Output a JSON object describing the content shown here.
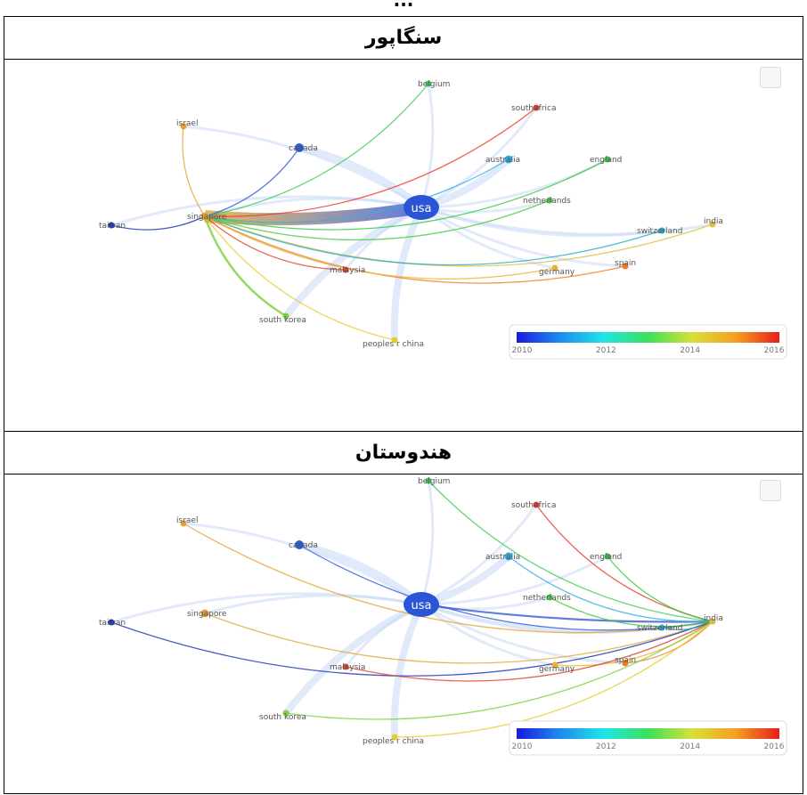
{
  "caption_cut": "...",
  "panels": [
    {
      "title": "سنگاپور",
      "focus": "singapore",
      "nodes": [
        {
          "id": "usa",
          "label": "usa",
          "color": "#2a55d6"
        },
        {
          "id": "singapore",
          "label": "singapore",
          "color": "#e0a83a"
        },
        {
          "id": "taiwan",
          "label": "taiwan",
          "color": "#1a2fb5"
        },
        {
          "id": "israel",
          "label": "israel",
          "color": "#e8a030"
        },
        {
          "id": "canada",
          "label": "canada",
          "color": "#2b5ad8"
        },
        {
          "id": "belgium",
          "label": "belgium",
          "color": "#3ccc55"
        },
        {
          "id": "southafrica",
          "label": "southafrica",
          "color": "#e83a2a"
        },
        {
          "id": "australia",
          "label": "australia",
          "color": "#2fb0e0"
        },
        {
          "id": "england",
          "label": "england",
          "color": "#33c74a"
        },
        {
          "id": "netherlands",
          "label": "netherlands",
          "color": "#45cc3c"
        },
        {
          "id": "india",
          "label": "india",
          "color": "#d8c23a"
        },
        {
          "id": "switzerland",
          "label": "switzerland",
          "color": "#27a9c9"
        },
        {
          "id": "spain",
          "label": "spain",
          "color": "#f07a25"
        },
        {
          "id": "germany",
          "label": "germany",
          "color": "#e8b52c"
        },
        {
          "id": "malaysia",
          "label": "malaysia",
          "color": "#e0402b"
        },
        {
          "id": "southkorea",
          "label": "south korea",
          "color": "#7ad038"
        },
        {
          "id": "china",
          "label": "peoples r china",
          "color": "#e6cc2a"
        }
      ]
    },
    {
      "title": "هندوستان",
      "focus": "india",
      "nodes": [
        {
          "id": "usa",
          "label": "usa",
          "color": "#2a55d6"
        },
        {
          "id": "singapore",
          "label": "singapore",
          "color": "#e0a83a"
        },
        {
          "id": "taiwan",
          "label": "taiwan",
          "color": "#1a2fb5"
        },
        {
          "id": "israel",
          "label": "israel",
          "color": "#e8a030"
        },
        {
          "id": "canada",
          "label": "canada",
          "color": "#2b5ad8"
        },
        {
          "id": "belgium",
          "label": "belgium",
          "color": "#3ccc55"
        },
        {
          "id": "southafrica",
          "label": "southafrica",
          "color": "#e83a2a"
        },
        {
          "id": "australia",
          "label": "australia",
          "color": "#2fb0e0"
        },
        {
          "id": "england",
          "label": "england",
          "color": "#33c74a"
        },
        {
          "id": "netherlands",
          "label": "netherlands",
          "color": "#45cc3c"
        },
        {
          "id": "india",
          "label": "india",
          "color": "#d8c23a"
        },
        {
          "id": "switzerland",
          "label": "switzerland",
          "color": "#27a9c9"
        },
        {
          "id": "spain",
          "label": "spain",
          "color": "#f07a25"
        },
        {
          "id": "germany",
          "label": "germany",
          "color": "#e8b52c"
        },
        {
          "id": "malaysia",
          "label": "malaysia",
          "color": "#e0402b"
        },
        {
          "id": "southkorea",
          "label": "south korea",
          "color": "#7ad038"
        },
        {
          "id": "china",
          "label": "peoples r china",
          "color": "#e6cc2a"
        }
      ]
    }
  ],
  "colorbar": {
    "ticks": [
      "2010",
      "2012",
      "2014",
      "2016"
    ],
    "gradient": [
      "#1a1adc",
      "#1e8cf0",
      "#1ee6e6",
      "#3ce05a",
      "#d8e03a",
      "#f5a020",
      "#e61e1e"
    ]
  },
  "nav_icon": "navigation-arrows-icon"
}
